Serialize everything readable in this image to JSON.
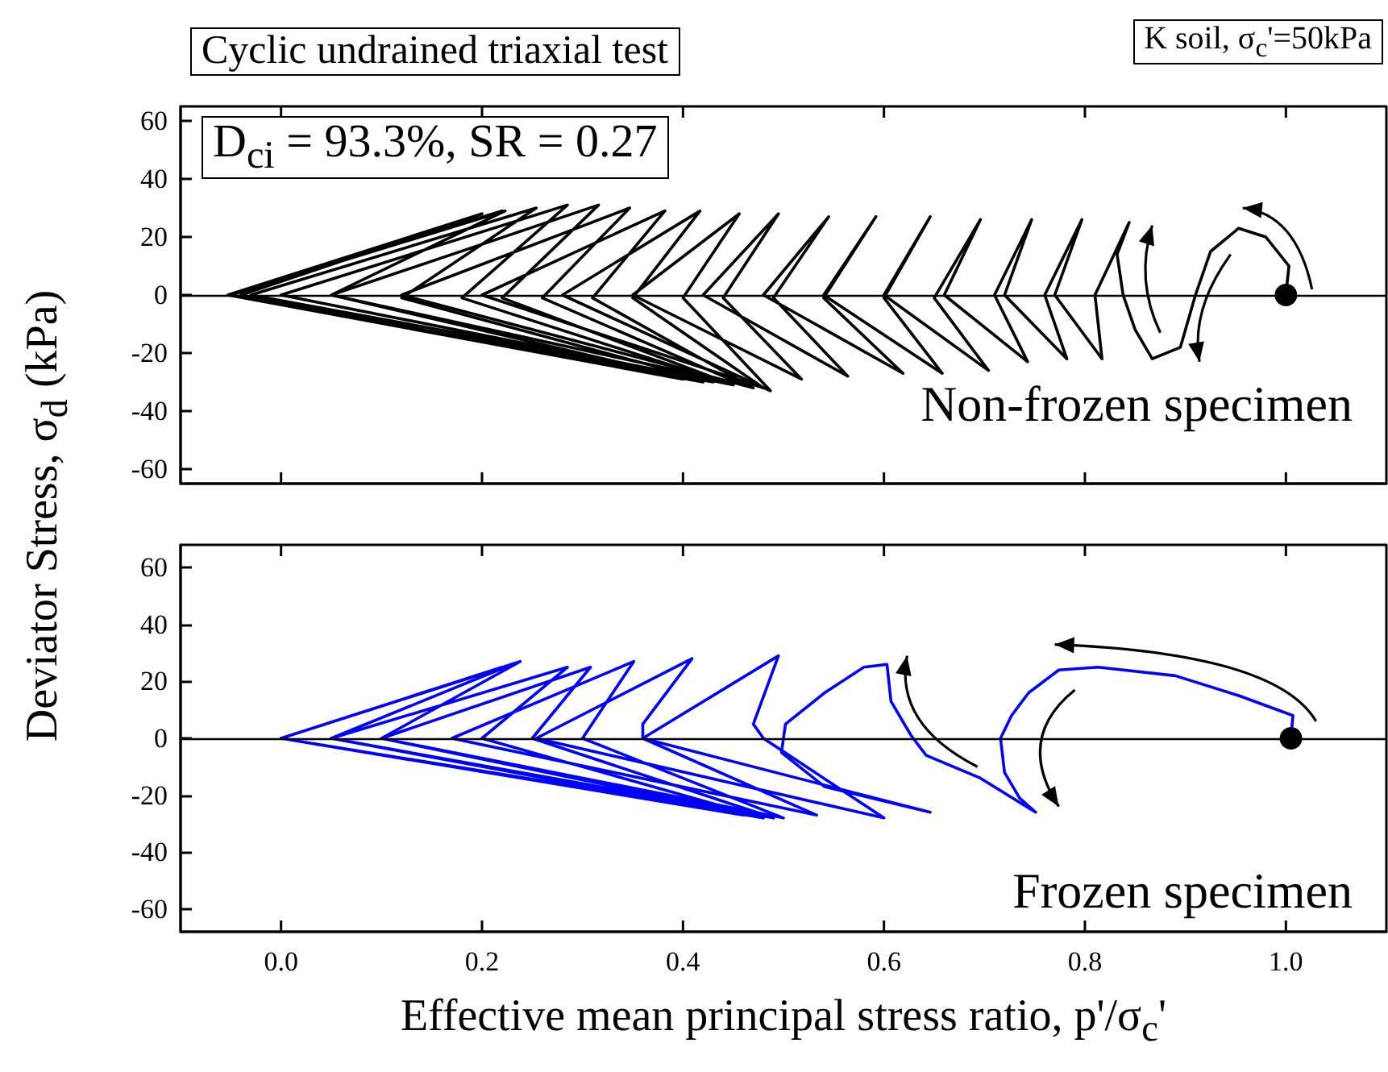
{
  "chart_data": [
    {
      "type": "line",
      "title": "Cyclic undrained triaxial test",
      "ylabel": "Deviator Stress, σ$_{d}$ (kPa)",
      "annotations": [
        "K soil, σ$_{c}$'=50kPa",
        "D$_{ci}$ = 93.3%, SR = 0.27",
        "Non-frozen specimen"
      ],
      "xlim": [
        -0.1,
        1.1
      ],
      "xticks": [
        0,
        0.2,
        0.4,
        0.6,
        0.8,
        1
      ],
      "ylim": [
        -65,
        65
      ],
      "yticks": [
        -60,
        -40,
        -20,
        0,
        20,
        40,
        60
      ],
      "tick_labels": "y",
      "grid": false,
      "ref_lines": [
        {
          "axis": "y",
          "value": 0,
          "color": "#000000"
        }
      ],
      "series": [
        {
          "color": "#000000",
          "marker": "none",
          "line_style": "solid",
          "x": [
            1.0,
            1.003,
            0.98,
            0.953,
            0.925,
            0.91,
            0.895,
            0.867,
            0.85,
            0.838,
            0.832,
            0.844,
            0.81,
            0.817,
            0.77,
            0.797,
            0.76,
            0.782,
            0.72,
            0.747,
            0.71,
            0.743,
            0.66,
            0.696,
            0.65,
            0.704,
            0.6,
            0.646,
            0.6,
            0.658,
            0.54,
            0.592,
            0.54,
            0.619,
            0.48,
            0.545,
            0.49,
            0.564,
            0.42,
            0.495,
            0.44,
            0.518,
            0.35,
            0.456,
            0.4,
            0.487,
            0.28,
            0.417,
            0.35,
            0.48,
            0.2,
            0.382,
            0.31,
            0.47,
            0.12,
            0.347,
            0.26,
            0.46,
            0.05,
            0.316,
            0.22,
            0.45,
            0.0,
            0.285,
            0.18,
            0.44,
            -0.03,
            0.254,
            0.12,
            0.43,
            -0.05,
            0.223,
            0.05,
            0.42,
            -0.053,
            0.2,
            -0.04,
            0.4,
            -0.053,
            0.22,
            -0.05
          ],
          "values": [
            0,
            10,
            20,
            23,
            15,
            0,
            -18,
            -22,
            -12,
            0,
            14,
            25,
            0,
            -22,
            0,
            26,
            0,
            -22,
            0,
            26,
            0,
            -23,
            0,
            26,
            -1,
            -26,
            0,
            27,
            -1,
            -27,
            0,
            27,
            -1,
            -27,
            0,
            27,
            -1,
            -28,
            0,
            28,
            -1,
            -29,
            0,
            28,
            -1,
            -33,
            0,
            29,
            -1,
            -32,
            0,
            29,
            -1,
            -32,
            0,
            30,
            -1,
            -31,
            0,
            31,
            -1,
            -31,
            0,
            31,
            -1,
            -30,
            0,
            30,
            -1,
            -30,
            0,
            29,
            0,
            -30,
            0,
            28,
            0,
            -29,
            0,
            29,
            0
          ]
        },
        {
          "type": "scatter",
          "color": "#000000",
          "marker": "circle",
          "x": [
            1.0
          ],
          "values": [
            0
          ]
        }
      ]
    },
    {
      "type": "line",
      "xlabel": "Effective mean principal stress ratio, p'/σ$_{c}$'",
      "annotations": [
        "Frozen specimen"
      ],
      "xlim": [
        -0.1,
        1.1
      ],
      "xticks": [
        {
          "value": 0,
          "label": "0.0"
        },
        0.2,
        0.4,
        0.6,
        0.8,
        {
          "value": 1,
          "label": "1.0"
        }
      ],
      "ylim": [
        -68,
        68
      ],
      "yticks": [
        -60,
        -40,
        -20,
        0,
        20,
        40,
        60
      ],
      "grid": false,
      "ref_lines": [
        {
          "axis": "y",
          "value": 0,
          "color": "#000000"
        }
      ],
      "series": [
        {
          "color": "#0000ff",
          "marker": "none",
          "line_style": "solid",
          "x": [
            1.005,
            1.007,
            0.953,
            0.89,
            0.813,
            0.774,
            0.744,
            0.727,
            0.716,
            0.72,
            0.735,
            0.751,
            0.696,
            0.642,
            0.627,
            0.607,
            0.603,
            0.58,
            0.541,
            0.502,
            0.498,
            0.541,
            0.646,
            0.36,
            0.495,
            0.47,
            0.48,
            0.6,
            0.254,
            0.409,
            0.36,
            0.36,
            0.533,
            0.17,
            0.351,
            0.3,
            0.5,
            0.1,
            0.308,
            0.25,
            0.49,
            0.05,
            0.285,
            0.2,
            0.48,
            0.0,
            0.238,
            0.1,
            0.47,
            0.0,
            0.23,
            0.05,
            0.46,
            0.0,
            0.22,
            0.0
          ],
          "values": [
            0,
            8,
            15,
            22,
            25,
            24,
            16,
            8,
            0,
            -12,
            -21,
            -26,
            -14,
            -6,
            1,
            13,
            26,
            25,
            16,
            5,
            -5,
            -17,
            -26,
            0,
            29,
            5,
            0,
            -28,
            0,
            28,
            5,
            0,
            -27,
            0,
            27,
            0,
            -28,
            0,
            25,
            0,
            -28,
            0,
            25,
            0,
            -28,
            0,
            27,
            0,
            -27,
            0,
            26,
            0,
            -27,
            0,
            25,
            0
          ]
        },
        {
          "type": "scatter",
          "color": "#000000",
          "marker": "circle",
          "x": [
            1.005
          ],
          "values": [
            0
          ]
        }
      ]
    }
  ]
}
